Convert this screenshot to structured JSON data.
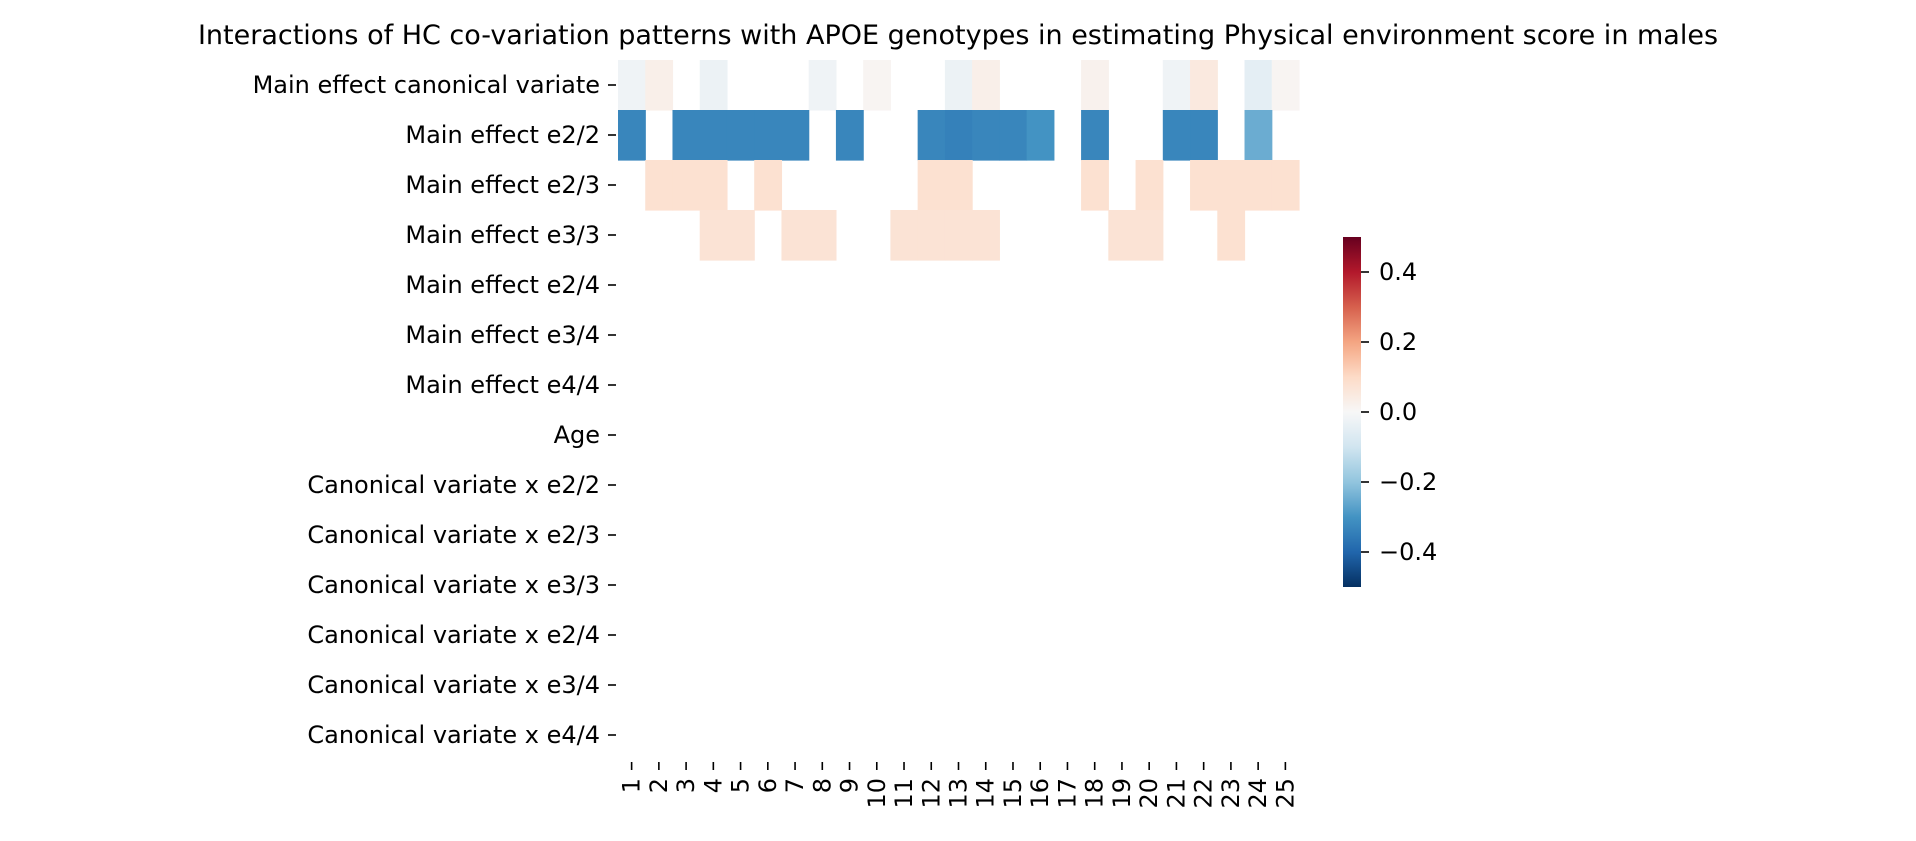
{
  "chart_data": {
    "type": "heatmap",
    "title": "Interactions of HC co-variation patterns with APOE genotypes in estimating Physical environment score in males",
    "xlabel": "",
    "ylabel": "",
    "columns": [
      "1",
      "2",
      "3",
      "4",
      "5",
      "6",
      "7",
      "8",
      "9",
      "10",
      "11",
      "12",
      "13",
      "14",
      "15",
      "16",
      "17",
      "18",
      "19",
      "20",
      "21",
      "22",
      "23",
      "24",
      "25"
    ],
    "rows": [
      "Main effect canonical variate",
      "Main effect e2/2",
      "Main effect e2/3",
      "Main effect e3/3",
      "Main effect e2/4",
      "Main effect e3/4",
      "Main effect e4/4",
      "Age",
      "Canonical variate x e2/2",
      "Canonical variate x e2/3",
      "Canonical variate x e3/3",
      "Canonical variate x e2/4",
      "Canonical variate x e3/4",
      "Canonical variate x e4/4"
    ],
    "values": [
      [
        -0.02,
        0.03,
        null,
        -0.03,
        null,
        null,
        null,
        -0.02,
        null,
        0.01,
        null,
        null,
        -0.03,
        0.03,
        null,
        null,
        null,
        0.02,
        null,
        null,
        -0.02,
        0.05,
        null,
        -0.05,
        0.01
      ],
      [
        -0.33,
        null,
        -0.33,
        -0.33,
        -0.33,
        -0.33,
        -0.33,
        null,
        -0.33,
        null,
        null,
        -0.33,
        -0.34,
        -0.33,
        -0.33,
        -0.3,
        null,
        -0.33,
        null,
        null,
        -0.33,
        -0.33,
        null,
        -0.25,
        null
      ],
      [
        null,
        0.08,
        0.08,
        0.08,
        null,
        0.08,
        null,
        null,
        null,
        null,
        null,
        0.08,
        0.08,
        null,
        null,
        null,
        null,
        0.08,
        null,
        0.08,
        null,
        0.08,
        0.08,
        0.08,
        0.08
      ],
      [
        null,
        null,
        null,
        0.07,
        0.07,
        null,
        0.07,
        0.07,
        null,
        null,
        0.07,
        0.07,
        0.07,
        0.07,
        null,
        null,
        null,
        null,
        0.07,
        0.07,
        null,
        null,
        0.08,
        null,
        null
      ],
      [
        null,
        null,
        null,
        null,
        null,
        null,
        null,
        null,
        null,
        null,
        null,
        null,
        null,
        null,
        null,
        null,
        null,
        null,
        null,
        null,
        null,
        null,
        null,
        null,
        null
      ],
      [
        null,
        null,
        null,
        null,
        null,
        null,
        null,
        null,
        null,
        null,
        null,
        null,
        null,
        null,
        null,
        null,
        null,
        null,
        null,
        null,
        null,
        null,
        null,
        null,
        null
      ],
      [
        null,
        null,
        null,
        null,
        null,
        null,
        null,
        null,
        null,
        null,
        null,
        null,
        null,
        null,
        null,
        null,
        null,
        null,
        null,
        null,
        null,
        null,
        null,
        null,
        null
      ],
      [
        null,
        null,
        null,
        null,
        null,
        null,
        null,
        null,
        null,
        null,
        null,
        null,
        null,
        null,
        null,
        null,
        null,
        null,
        null,
        null,
        null,
        null,
        null,
        null,
        null
      ],
      [
        null,
        null,
        null,
        null,
        null,
        null,
        null,
        null,
        null,
        null,
        null,
        null,
        null,
        null,
        null,
        null,
        null,
        null,
        null,
        null,
        null,
        null,
        null,
        null,
        null
      ],
      [
        null,
        null,
        null,
        null,
        null,
        null,
        null,
        null,
        null,
        null,
        null,
        null,
        null,
        null,
        null,
        null,
        null,
        null,
        null,
        null,
        null,
        null,
        null,
        null,
        null
      ],
      [
        null,
        null,
        null,
        null,
        null,
        null,
        null,
        null,
        null,
        null,
        null,
        null,
        null,
        null,
        null,
        null,
        null,
        null,
        null,
        null,
        null,
        null,
        null,
        null,
        null
      ],
      [
        null,
        null,
        null,
        null,
        null,
        null,
        null,
        null,
        null,
        null,
        null,
        null,
        null,
        null,
        null,
        null,
        null,
        null,
        null,
        null,
        null,
        null,
        null,
        null,
        null
      ],
      [
        null,
        null,
        null,
        null,
        null,
        null,
        null,
        null,
        null,
        null,
        null,
        null,
        null,
        null,
        null,
        null,
        null,
        null,
        null,
        null,
        null,
        null,
        null,
        null,
        null
      ],
      [
        null,
        null,
        null,
        null,
        null,
        null,
        null,
        null,
        null,
        null,
        null,
        null,
        null,
        null,
        null,
        null,
        null,
        null,
        null,
        null,
        null,
        null,
        null,
        null,
        null
      ]
    ],
    "colorbar": {
      "colormap": "RdBu_r",
      "vmin": -0.5,
      "vmax": 0.5,
      "ticks": [
        0.4,
        0.2,
        0.0,
        -0.2,
        -0.4
      ],
      "tick_labels": [
        "0.4",
        "0.2",
        "0.0",
        "−0.2",
        "−0.4"
      ]
    },
    "grid": false,
    "legend": "colorbar-right"
  }
}
